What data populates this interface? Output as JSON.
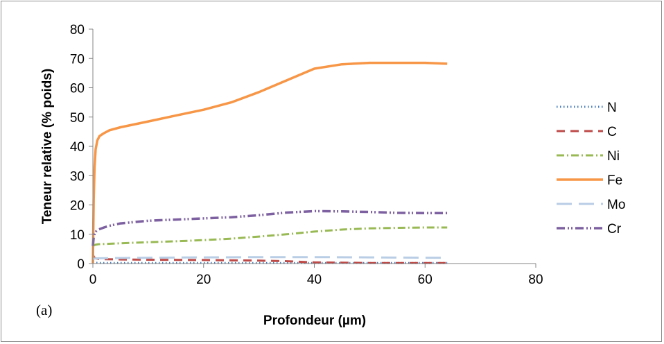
{
  "chart_data": {
    "type": "line",
    "title": "",
    "panel_label": "(a)",
    "xlabel": "Profondeur (µm)",
    "ylabel": "Teneur relative (% poids)",
    "xlim": [
      0,
      80
    ],
    "ylim": [
      0,
      80
    ],
    "xticks": [
      "0",
      "20",
      "40",
      "60",
      "80"
    ],
    "yticks": [
      "0",
      "10",
      "20",
      "30",
      "40",
      "50",
      "60",
      "70",
      "80"
    ],
    "grid": false,
    "legend_position": "right",
    "series": [
      {
        "name": "N",
        "color": "#4a7ebb",
        "dash": "1.5 3.5",
        "width": 3,
        "x": [
          0,
          0.3,
          1,
          10,
          20,
          30,
          40,
          50,
          60,
          64
        ],
        "y": [
          0.3,
          0.3,
          0.2,
          0.2,
          0.2,
          0.2,
          0.2,
          0.2,
          0.2,
          0.2
        ]
      },
      {
        "name": "C",
        "color": "#be4b48",
        "dash": "12 8",
        "width": 3,
        "x": [
          0,
          0.2,
          0.4,
          1,
          2,
          5,
          10,
          20,
          30,
          35,
          40,
          45,
          50,
          60,
          64
        ],
        "y": [
          3.0,
          2.2,
          1.8,
          1.6,
          1.5,
          1.4,
          1.3,
          1.2,
          1.0,
          0.8,
          0.4,
          0.3,
          0.2,
          0.2,
          0.2
        ]
      },
      {
        "name": "Ni",
        "color": "#98b954",
        "dash": "11 4 2 4",
        "width": 3,
        "x": [
          0,
          0.4,
          1,
          5,
          10,
          15,
          20,
          25,
          30,
          35,
          40,
          45,
          50,
          55,
          60,
          64
        ],
        "y": [
          6.0,
          6.4,
          6.6,
          6.9,
          7.3,
          7.6,
          8.0,
          8.5,
          9.2,
          10.0,
          10.9,
          11.6,
          12.0,
          12.2,
          12.3,
          12.3
        ]
      },
      {
        "name": "Fe",
        "color": "#f79646",
        "dash": "",
        "width": 3.5,
        "x": [
          0,
          0.15,
          0.3,
          0.5,
          0.8,
          1.2,
          2,
          3,
          5,
          10,
          15,
          20,
          25,
          30,
          35,
          40,
          45,
          50,
          55,
          60,
          64
        ],
        "y": [
          0,
          22,
          33,
          39,
          42,
          43.5,
          44.5,
          45.5,
          46.5,
          48.5,
          50.5,
          52.5,
          55,
          58.5,
          62.5,
          66.5,
          68,
          68.5,
          68.5,
          68.5,
          68.2
        ]
      },
      {
        "name": "Mo",
        "color": "#b9cde5",
        "dash": "22 10",
        "width": 3,
        "x": [
          0,
          0.3,
          1,
          10,
          20,
          30,
          40,
          50,
          60,
          64
        ],
        "y": [
          1.6,
          1.7,
          1.8,
          2.0,
          2.1,
          2.2,
          2.2,
          2.1,
          2.0,
          2.0
        ]
      },
      {
        "name": "Cr",
        "color": "#7d60a0",
        "dash": "12 4 2 3 2 4",
        "width": 3.5,
        "x": [
          0,
          0.15,
          0.3,
          0.6,
          1,
          2,
          3,
          5,
          10,
          15,
          20,
          25,
          30,
          35,
          40,
          45,
          50,
          55,
          60,
          64
        ],
        "y": [
          6.0,
          9.0,
          10.0,
          11.0,
          11.6,
          12.3,
          12.9,
          13.7,
          14.6,
          15.0,
          15.4,
          15.8,
          16.5,
          17.4,
          17.9,
          17.8,
          17.6,
          17.3,
          17.2,
          17.2
        ]
      }
    ]
  }
}
